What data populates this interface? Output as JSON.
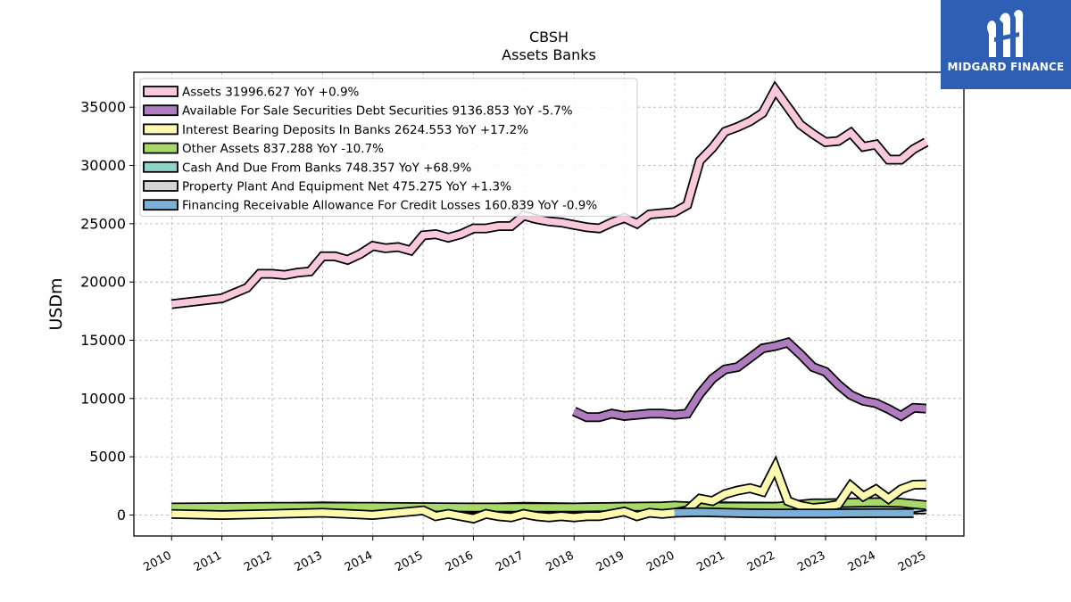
{
  "chart_data": {
    "type": "area",
    "title": "CBSH",
    "subtitle": "Assets Banks",
    "ylabel": "USDm",
    "xlabel": "",
    "ylim": [
      -1800,
      38000
    ],
    "xlim": [
      2009.25,
      2025.75
    ],
    "yticks": [
      0,
      5000,
      10000,
      15000,
      20000,
      25000,
      30000,
      35000
    ],
    "xticks": [
      "2010",
      "2011",
      "2012",
      "2013",
      "2014",
      "2015",
      "2016",
      "2017",
      "2018",
      "2019",
      "2020",
      "2021",
      "2022",
      "2023",
      "2024",
      "2025"
    ],
    "grid": true,
    "legend_position": "top-left",
    "series": [
      {
        "name": "Assets",
        "label": "Assets  31996.627 YoY +0.9%",
        "color": "#f9c8dc",
        "x": [
          2010.0,
          2011.0,
          2011.5,
          2011.75,
          2012.0,
          2012.25,
          2012.5,
          2012.75,
          2013.0,
          2013.25,
          2013.5,
          2013.75,
          2014.0,
          2014.25,
          2014.5,
          2014.75,
          2015.0,
          2015.25,
          2015.5,
          2015.75,
          2016.0,
          2016.25,
          2016.5,
          2016.75,
          2017.0,
          2017.25,
          2017.5,
          2017.75,
          2018.0,
          2018.25,
          2018.5,
          2018.75,
          2019.0,
          2019.25,
          2019.5,
          2019.75,
          2020.0,
          2020.25,
          2020.5,
          2020.75,
          2021.0,
          2021.25,
          2021.5,
          2021.75,
          2022.0,
          2022.25,
          2022.5,
          2022.75,
          2023.0,
          2023.25,
          2023.5,
          2023.75,
          2024.0,
          2024.25,
          2024.5,
          2024.75,
          2025.0
        ],
        "y": [
          18100,
          18600,
          19500,
          20700,
          20700,
          20600,
          20800,
          20900,
          22200,
          22200,
          21900,
          22400,
          23100,
          22900,
          23000,
          22700,
          24000,
          24100,
          23800,
          24100,
          24600,
          24600,
          24800,
          24800,
          25700,
          25400,
          25200,
          25100,
          24900,
          24700,
          24600,
          25100,
          25500,
          25000,
          25800,
          25900,
          26000,
          26600,
          30400,
          31500,
          32900,
          33300,
          33800,
          34500,
          36500,
          35000,
          33500,
          32700,
          32000,
          32100,
          32800,
          31600,
          31800,
          30500,
          30500,
          31400,
          31997
        ]
      },
      {
        "name": "Available For Sale Securities Debt Securities",
        "label": "Available For Sale Securities Debt Securities  9136.853 YoY -5.7%",
        "color": "#b07cc0",
        "x": [
          2018.0,
          2018.25,
          2018.5,
          2018.75,
          2019.0,
          2019.25,
          2019.5,
          2019.75,
          2020.0,
          2020.25,
          2020.5,
          2020.75,
          2021.0,
          2021.25,
          2021.5,
          2021.75,
          2022.0,
          2022.25,
          2022.5,
          2022.75,
          2023.0,
          2023.25,
          2023.5,
          2023.75,
          2024.0,
          2024.25,
          2024.5,
          2024.75,
          2025.0
        ],
        "y": [
          8900,
          8400,
          8400,
          8700,
          8500,
          8600,
          8700,
          8700,
          8600,
          8700,
          10400,
          11700,
          12500,
          12700,
          13500,
          14300,
          14500,
          14800,
          13800,
          12700,
          12300,
          11200,
          10300,
          9800,
          9600,
          9100,
          8500,
          9200,
          9137
        ]
      },
      {
        "name": "Interest Bearing Deposits In Banks",
        "label": "Interest Bearing Deposits In Banks  2624.553 YoY +17.2%",
        "color": "#fdfab0",
        "x": [
          2010.0,
          2011.0,
          2012.0,
          2013.0,
          2014.0,
          2015.0,
          2015.25,
          2015.5,
          2015.75,
          2016.0,
          2016.25,
          2016.5,
          2016.75,
          2017.0,
          2017.25,
          2017.5,
          2017.75,
          2018.0,
          2018.25,
          2018.5,
          2018.75,
          2019.0,
          2019.25,
          2019.5,
          2019.75,
          2020.0,
          2020.25,
          2020.5,
          2020.75,
          2021.0,
          2021.25,
          2021.5,
          2021.75,
          2022.0,
          2022.25,
          2022.5,
          2022.75,
          2023.0,
          2023.25,
          2023.5,
          2023.75,
          2024.0,
          2024.25,
          2024.5,
          2024.75,
          2025.0
        ],
        "y": [
          100,
          0,
          100,
          200,
          0,
          400,
          -100,
          100,
          -100,
          -300,
          100,
          -100,
          -200,
          100,
          -100,
          -200,
          -100,
          -200,
          -100,
          -100,
          100,
          300,
          -100,
          200,
          100,
          200,
          400,
          1400,
          1200,
          1800,
          2100,
          2300,
          2000,
          4100,
          1200,
          800,
          600,
          700,
          900,
          2500,
          1600,
          2200,
          1400,
          2200,
          2600,
          2625
        ]
      },
      {
        "name": "Other Assets",
        "label": "Other Assets  837.288 YoY -10.7%",
        "color": "#a8d86a",
        "x": [
          2010.0,
          2012.0,
          2014.0,
          2016.0,
          2018.0,
          2019.0,
          2019.75,
          2020.0,
          2020.5,
          2021.0,
          2021.5,
          2022.0,
          2022.5,
          2022.75,
          2023.0,
          2023.5,
          2024.0,
          2024.5,
          2025.0
        ],
        "y": [
          650,
          700,
          700,
          650,
          650,
          700,
          750,
          800,
          700,
          700,
          700,
          700,
          900,
          1000,
          1000,
          1050,
          1100,
          1050,
          837
        ]
      },
      {
        "name": "Cash And Due From Banks",
        "label": "Cash And Due From Banks  748.357 YoY +68.9%",
        "color": "#8ed3c7",
        "x": [
          2010.0,
          2011.0,
          2012.0,
          2013.0,
          2013.5,
          2014.0,
          2015.0,
          2016.0,
          2017.0,
          2018.0,
          2019.0,
          2020.0,
          2021.0,
          2022.0,
          2022.5,
          2023.0,
          2024.0,
          2024.5,
          2025.0
        ],
        "y": [
          550,
          500,
          650,
          750,
          700,
          650,
          600,
          600,
          700,
          650,
          700,
          650,
          750,
          700,
          600,
          500,
          450,
          450,
          748
        ]
      },
      {
        "name": "Property Plant And Equipment Net",
        "label": "Property Plant And Equipment Net  475.275 YoY +1.3%",
        "color": "#d4d4d4",
        "x": [
          2010.0,
          2025.0
        ],
        "y": [
          470,
          475
        ]
      },
      {
        "name": "Financing Receivable Allowance For Credit Losses",
        "label": "Financing Receivable Allowance For Credit Losses  160.839 YoY -0.9%",
        "color": "#7eb0d6",
        "x": [
          2020.0,
          2020.5,
          2021.0,
          2021.5,
          2022.0,
          2022.5,
          2023.0,
          2023.5,
          2024.0,
          2024.75
        ],
        "y": [
          200,
          250,
          200,
          150,
          130,
          130,
          140,
          150,
          160,
          161
        ]
      }
    ]
  },
  "logo": {
    "text": "MIDGARD FINANCE",
    "color": "#2d5fb4"
  }
}
